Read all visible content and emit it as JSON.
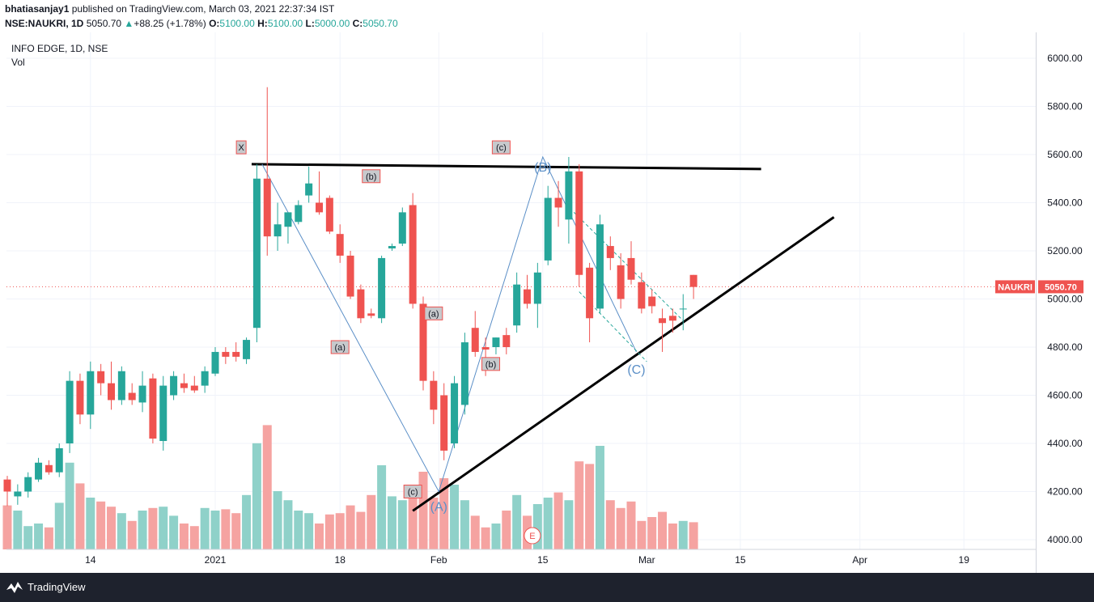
{
  "header": {
    "publisher": "bhatiasanjay1",
    "published_text": "published on TradingView.com, March 03, 2021 22:37:34 IST",
    "symbol_interval": "NSE:NAUKRI, 1D",
    "last": "5050.70",
    "change": "+88.25 (+1.78%)",
    "o_label": "O:",
    "o_value": "5100.00",
    "h_label": "H:",
    "h_value": "5100.00",
    "l_label": "L:",
    "l_value": "5000.00",
    "c_label": "C:",
    "c_value": "5050.70"
  },
  "legend": {
    "title": "INFO EDGE, 1D, NSE",
    "vol": "Vol"
  },
  "footer": {
    "brand": "TradingView",
    "icon": "tradingview-logo-icon"
  },
  "colors": {
    "up": "#26a69a",
    "down": "#ef5350",
    "vol_up": "#8fd1c9",
    "vol_down": "#f5a3a1",
    "wave": "#5b8fc7",
    "price_badge": "#ef5350"
  },
  "chart_data": {
    "type": "candlestick",
    "ylim": [
      3950,
      6080
    ],
    "y_ticks": [
      "6000.00",
      "5800.00",
      "5600.00",
      "5400.00",
      "5200.00",
      "5000.00",
      "4800.00",
      "4600.00",
      "4400.00",
      "4200.00",
      "4000.00"
    ],
    "x_ticks": [
      "14",
      "2021",
      "18",
      "Feb",
      "15",
      "Mar",
      "15",
      "Apr",
      "19"
    ],
    "last_price": {
      "label": "NAUKRI",
      "value": "5050.70"
    },
    "earnings_marker": "E",
    "candles": [
      {
        "o": 4250,
        "h": 4265,
        "l": 4140,
        "c": 4200,
        "v": 0.34
      },
      {
        "o": 4180,
        "h": 4230,
        "l": 4145,
        "c": 4200,
        "v": 0.3
      },
      {
        "o": 4200,
        "h": 4280,
        "l": 4175,
        "c": 4260,
        "v": 0.18
      },
      {
        "o": 4250,
        "h": 4340,
        "l": 4240,
        "c": 4320,
        "v": 0.2
      },
      {
        "o": 4310,
        "h": 4330,
        "l": 4270,
        "c": 4280,
        "v": 0.17
      },
      {
        "o": 4280,
        "h": 4400,
        "l": 4260,
        "c": 4380,
        "v": 0.36
      },
      {
        "o": 4400,
        "h": 4700,
        "l": 4360,
        "c": 4660,
        "v": 0.67
      },
      {
        "o": 4660,
        "h": 4690,
        "l": 4480,
        "c": 4520,
        "v": 0.51
      },
      {
        "o": 4520,
        "h": 4740,
        "l": 4460,
        "c": 4700,
        "v": 0.4
      },
      {
        "o": 4700,
        "h": 4730,
        "l": 4600,
        "c": 4650,
        "v": 0.37
      },
      {
        "o": 4650,
        "h": 4740,
        "l": 4540,
        "c": 4580,
        "v": 0.33
      },
      {
        "o": 4580,
        "h": 4720,
        "l": 4560,
        "c": 4700,
        "v": 0.28
      },
      {
        "o": 4610,
        "h": 4650,
        "l": 4560,
        "c": 4580,
        "v": 0.22
      },
      {
        "o": 4570,
        "h": 4700,
        "l": 4530,
        "c": 4640,
        "v": 0.3
      },
      {
        "o": 4670,
        "h": 4690,
        "l": 4400,
        "c": 4420,
        "v": 0.32
      },
      {
        "o": 4410,
        "h": 4680,
        "l": 4370,
        "c": 4640,
        "v": 0.33
      },
      {
        "o": 4600,
        "h": 4700,
        "l": 4580,
        "c": 4680,
        "v": 0.26
      },
      {
        "o": 4650,
        "h": 4690,
        "l": 4610,
        "c": 4630,
        "v": 0.2
      },
      {
        "o": 4640,
        "h": 4680,
        "l": 4610,
        "c": 4620,
        "v": 0.18
      },
      {
        "o": 4640,
        "h": 4720,
        "l": 4610,
        "c": 4700,
        "v": 0.32
      },
      {
        "o": 4690,
        "h": 4800,
        "l": 4680,
        "c": 4780,
        "v": 0.3
      },
      {
        "o": 4780,
        "h": 4800,
        "l": 4730,
        "c": 4760,
        "v": 0.31
      },
      {
        "o": 4780,
        "h": 4820,
        "l": 4740,
        "c": 4760,
        "v": 0.28
      },
      {
        "o": 4750,
        "h": 4840,
        "l": 4730,
        "c": 4830,
        "v": 0.42
      },
      {
        "o": 4880,
        "h": 5560,
        "l": 4820,
        "c": 5500,
        "v": 0.82
      },
      {
        "o": 5500,
        "h": 5880,
        "l": 5180,
        "c": 5260,
        "v": 0.96
      },
      {
        "o": 5260,
        "h": 5400,
        "l": 5200,
        "c": 5310,
        "v": 0.45
      },
      {
        "o": 5300,
        "h": 5350,
        "l": 5230,
        "c": 5360,
        "v": 0.38
      },
      {
        "o": 5320,
        "h": 5410,
        "l": 5310,
        "c": 5390,
        "v": 0.3
      },
      {
        "o": 5430,
        "h": 5550,
        "l": 5400,
        "c": 5480,
        "v": 0.28
      },
      {
        "o": 5400,
        "h": 5530,
        "l": 5350,
        "c": 5360,
        "v": 0.2
      },
      {
        "o": 5420,
        "h": 5430,
        "l": 5270,
        "c": 5280,
        "v": 0.27
      },
      {
        "o": 5270,
        "h": 5310,
        "l": 5150,
        "c": 5180,
        "v": 0.28
      },
      {
        "o": 5180,
        "h": 5200,
        "l": 5000,
        "c": 5010,
        "v": 0.34
      },
      {
        "o": 5040,
        "h": 5060,
        "l": 4900,
        "c": 4920,
        "v": 0.29
      },
      {
        "o": 4940,
        "h": 4960,
        "l": 4920,
        "c": 4930,
        "v": 0.42
      },
      {
        "o": 4920,
        "h": 5180,
        "l": 4900,
        "c": 5170,
        "v": 0.65
      },
      {
        "o": 5210,
        "h": 5230,
        "l": 5200,
        "c": 5220,
        "v": 0.41
      },
      {
        "o": 5230,
        "h": 5380,
        "l": 5220,
        "c": 5360,
        "v": 0.38
      },
      {
        "o": 5390,
        "h": 5440,
        "l": 4960,
        "c": 4980,
        "v": 0.5
      },
      {
        "o": 4980,
        "h": 5010,
        "l": 4620,
        "c": 4660,
        "v": 0.6
      },
      {
        "o": 4660,
        "h": 4700,
        "l": 4480,
        "c": 4540,
        "v": 0.4
      },
      {
        "o": 4600,
        "h": 4650,
        "l": 4330,
        "c": 4370,
        "v": 0.55
      },
      {
        "o": 4400,
        "h": 4680,
        "l": 4380,
        "c": 4650,
        "v": 0.5
      },
      {
        "o": 4560,
        "h": 4860,
        "l": 4520,
        "c": 4820,
        "v": 0.38
      },
      {
        "o": 4880,
        "h": 4950,
        "l": 4760,
        "c": 4780,
        "v": 0.26
      },
      {
        "o": 4800,
        "h": 4840,
        "l": 4680,
        "c": 4790,
        "v": 0.17
      },
      {
        "o": 4800,
        "h": 4840,
        "l": 4770,
        "c": 4840,
        "v": 0.2
      },
      {
        "o": 4850,
        "h": 4880,
        "l": 4770,
        "c": 4800,
        "v": 0.3
      },
      {
        "o": 4890,
        "h": 5110,
        "l": 4860,
        "c": 5060,
        "v": 0.42
      },
      {
        "o": 5040,
        "h": 5100,
        "l": 4960,
        "c": 4980,
        "v": 0.26
      },
      {
        "o": 4980,
        "h": 5150,
        "l": 4880,
        "c": 5110,
        "v": 0.35
      },
      {
        "o": 5160,
        "h": 5470,
        "l": 5140,
        "c": 5420,
        "v": 0.4
      },
      {
        "o": 5420,
        "h": 5490,
        "l": 5300,
        "c": 5380,
        "v": 0.44
      },
      {
        "o": 5330,
        "h": 5590,
        "l": 5230,
        "c": 5530,
        "v": 0.38
      },
      {
        "o": 5530,
        "h": 5560,
        "l": 5050,
        "c": 5100,
        "v": 0.68
      },
      {
        "o": 5130,
        "h": 5150,
        "l": 4820,
        "c": 4920,
        "v": 0.66
      },
      {
        "o": 4960,
        "h": 5350,
        "l": 4940,
        "c": 5310,
        "v": 0.8
      },
      {
        "o": 5220,
        "h": 5260,
        "l": 5120,
        "c": 5170,
        "v": 0.38
      },
      {
        "o": 5140,
        "h": 5190,
        "l": 4960,
        "c": 5000,
        "v": 0.32
      },
      {
        "o": 5170,
        "h": 5240,
        "l": 5060,
        "c": 5080,
        "v": 0.37
      },
      {
        "o": 5070,
        "h": 5110,
        "l": 4940,
        "c": 4960,
        "v": 0.22
      },
      {
        "o": 5010,
        "h": 5040,
        "l": 4940,
        "c": 4970,
        "v": 0.25
      },
      {
        "o": 4920,
        "h": 4960,
        "l": 4780,
        "c": 4900,
        "v": 0.29
      },
      {
        "o": 4930,
        "h": 4960,
        "l": 4860,
        "c": 4910,
        "v": 0.2
      },
      {
        "o": 4960,
        "h": 5020,
        "l": 4870,
        "c": 4960,
        "v": 0.22
      },
      {
        "o": 5100,
        "h": 5100,
        "l": 5000,
        "c": 5050,
        "v": 0.21
      }
    ],
    "slots": [
      0,
      1,
      2,
      3,
      4,
      5,
      6,
      7,
      8,
      9,
      10,
      11,
      12,
      13,
      14,
      15,
      16,
      17,
      18,
      19,
      20,
      21,
      22,
      23,
      24,
      25,
      26,
      27,
      28,
      29,
      30,
      31,
      32,
      33,
      34,
      35,
      36,
      37,
      38,
      39,
      40,
      41,
      42,
      43,
      44,
      45,
      46,
      47,
      48,
      49,
      50,
      51,
      52,
      53,
      54,
      55,
      56,
      57,
      58,
      59,
      60,
      61,
      62,
      63,
      64,
      65,
      66
    ],
    "annotations": [
      {
        "label": "X",
        "slot": 22.5,
        "price": 5630,
        "style": "box"
      },
      {
        "label": "(b)",
        "slot": 35,
        "price": 5510,
        "style": "box"
      },
      {
        "label": "(c)",
        "slot": 47.5,
        "price": 5630,
        "style": "box"
      },
      {
        "label": "(a)",
        "slot": 32,
        "price": 4800,
        "style": "box"
      },
      {
        "label": "(a)",
        "slot": 41,
        "price": 4940,
        "style": "box"
      },
      {
        "label": "(b)",
        "slot": 46.5,
        "price": 4730,
        "style": "box"
      },
      {
        "label": "(c)",
        "slot": 39,
        "price": 4200,
        "style": "box"
      },
      {
        "label": "(B)",
        "slot": 51.5,
        "price": 5550,
        "style": "wave"
      },
      {
        "label": "(A)",
        "slot": 41.5,
        "price": 4140,
        "style": "wave"
      },
      {
        "label": "(C)",
        "slot": 60.5,
        "price": 4710,
        "style": "wave"
      }
    ]
  }
}
